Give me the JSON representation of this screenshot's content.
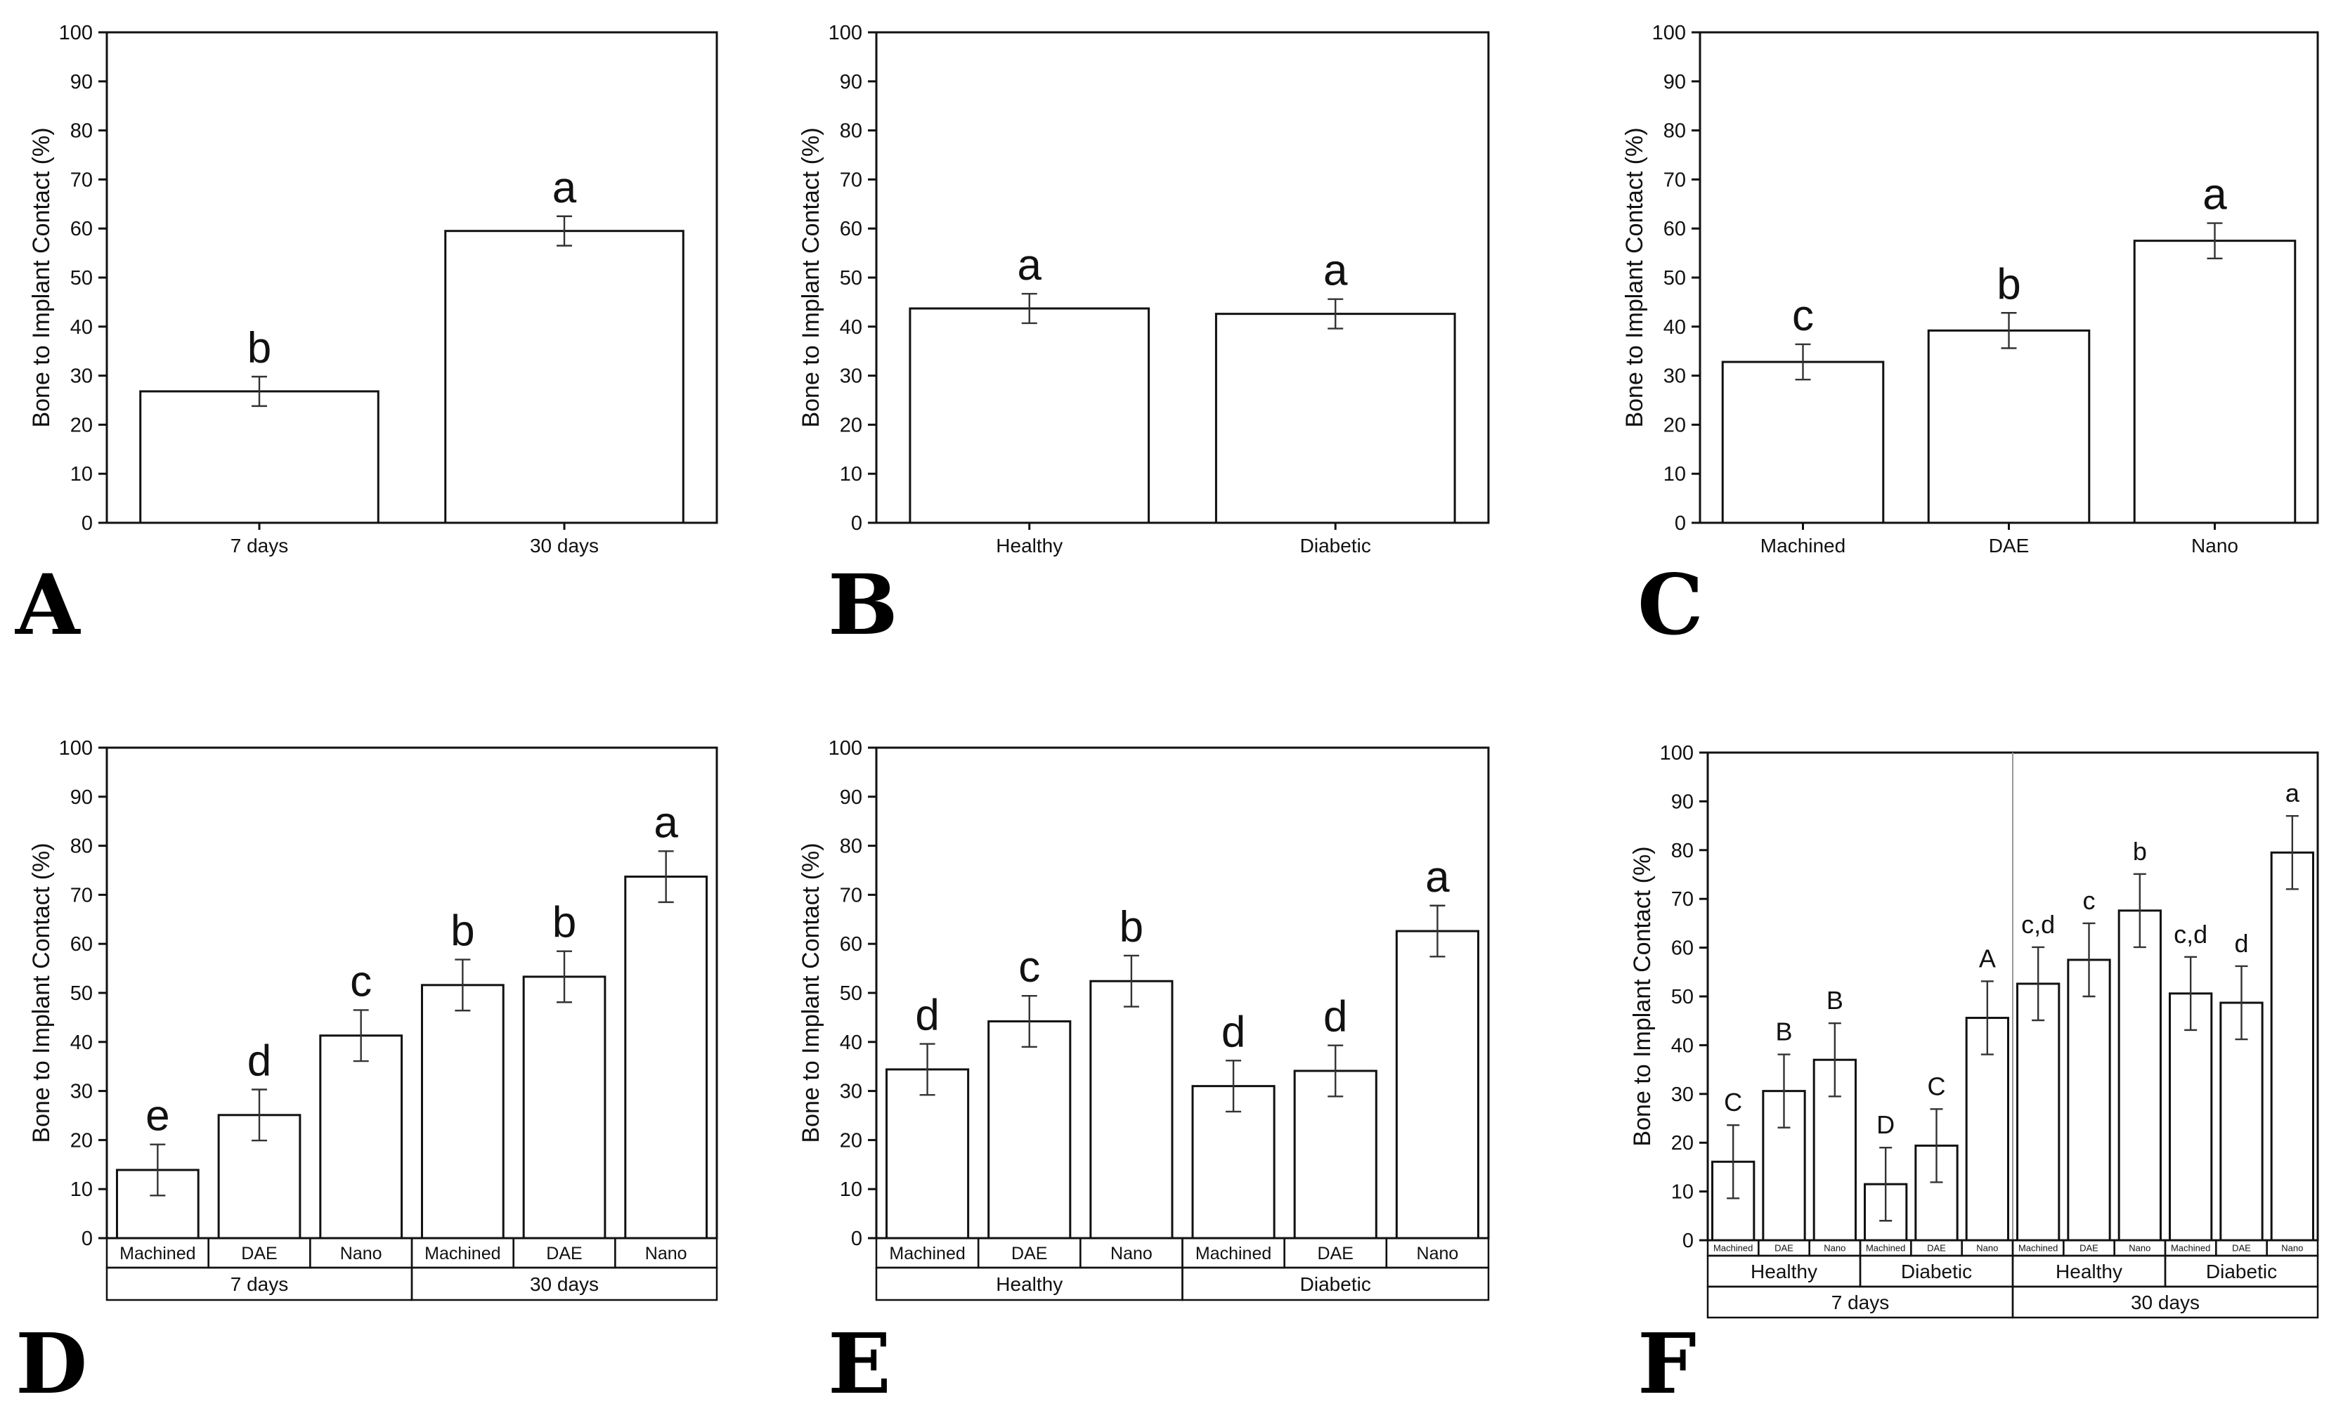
{
  "colors": {
    "bar_fill": "#ffffff",
    "stroke": "#111111"
  },
  "chart_data": [
    {
      "panel": "A",
      "type": "bar",
      "ylabel": "Bone to Implant Contact (%)",
      "ylim": [
        0,
        100
      ],
      "yticks": [
        "0",
        "10",
        "20",
        "30",
        "40",
        "50",
        "60",
        "70",
        "80",
        "90",
        "100"
      ],
      "categories": [
        "7 days",
        "30 days"
      ],
      "values": [
        26.8,
        59.5
      ],
      "errors": [
        3.0,
        3.0
      ],
      "letters": [
        "b",
        "a"
      ],
      "groups": []
    },
    {
      "panel": "B",
      "type": "bar",
      "ylabel": "Bone to Implant Contact (%)",
      "ylim": [
        0,
        100
      ],
      "yticks": [
        "0",
        "10",
        "20",
        "30",
        "40",
        "50",
        "60",
        "70",
        "80",
        "90",
        "100"
      ],
      "categories": [
        "Healthy",
        "Diabetic"
      ],
      "values": [
        43.7,
        42.6
      ],
      "errors": [
        3.0,
        3.0
      ],
      "letters": [
        "a",
        "a"
      ],
      "groups": []
    },
    {
      "panel": "C",
      "type": "bar",
      "ylabel": "Bone to Implant Contact (%)",
      "ylim": [
        0,
        100
      ],
      "yticks": [
        "0",
        "10",
        "20",
        "30",
        "40",
        "50",
        "60",
        "70",
        "80",
        "90",
        "100"
      ],
      "categories": [
        "Machined",
        "DAE",
        "Nano"
      ],
      "values": [
        32.8,
        39.2,
        57.5
      ],
      "errors": [
        3.6,
        3.6,
        3.6
      ],
      "letters": [
        "c",
        "b",
        "a"
      ],
      "groups": []
    },
    {
      "panel": "D",
      "type": "bar",
      "ylabel": "Bone to Implant Contact (%)",
      "ylim": [
        0,
        100
      ],
      "yticks": [
        "0",
        "10",
        "20",
        "30",
        "40",
        "50",
        "60",
        "70",
        "80",
        "90",
        "100"
      ],
      "categories": [
        "Machined",
        "DAE",
        "Nano",
        "Machined",
        "DAE",
        "Nano"
      ],
      "values": [
        13.9,
        25.1,
        41.3,
        51.6,
        53.3,
        73.7
      ],
      "errors": [
        5.2,
        5.2,
        5.2,
        5.2,
        5.2,
        5.2
      ],
      "letters": [
        "e",
        "d",
        "c",
        "b",
        "b",
        "a"
      ],
      "groups": [
        [
          {
            "label": "7 days",
            "span": 3
          },
          {
            "label": "30 days",
            "span": 3
          }
        ]
      ]
    },
    {
      "panel": "E",
      "type": "bar",
      "ylabel": "Bone to Implant Contact (%)",
      "ylim": [
        0,
        100
      ],
      "yticks": [
        "0",
        "10",
        "20",
        "30",
        "40",
        "50",
        "60",
        "70",
        "80",
        "90",
        "100"
      ],
      "categories": [
        "Machined",
        "DAE",
        "Nano",
        "Machined",
        "DAE",
        "Nano"
      ],
      "values": [
        34.4,
        44.2,
        52.4,
        31.0,
        34.1,
        62.6
      ],
      "errors": [
        5.2,
        5.2,
        5.2,
        5.2,
        5.2,
        5.2
      ],
      "letters": [
        "d",
        "c",
        "b",
        "d",
        "d",
        "a"
      ],
      "groups": [
        [
          {
            "label": "Healthy",
            "span": 3
          },
          {
            "label": "Diabetic",
            "span": 3
          }
        ]
      ]
    },
    {
      "panel": "F",
      "type": "bar",
      "ylabel": "Bone to Implant Contact (%)",
      "ylim": [
        0,
        100
      ],
      "yticks": [
        "0",
        "10",
        "20",
        "30",
        "40",
        "50",
        "60",
        "70",
        "80",
        "90",
        "100"
      ],
      "categories": [
        "Machined",
        "DAE",
        "Nano",
        "Machined",
        "DAE",
        "Nano",
        "Machined",
        "DAE",
        "Nano",
        "Machined",
        "DAE",
        "Nano"
      ],
      "values": [
        16.1,
        30.6,
        37.0,
        11.5,
        19.4,
        45.6,
        52.6,
        57.5,
        67.6,
        50.6,
        48.7,
        79.5
      ],
      "errors": [
        7.5,
        7.5,
        7.5,
        7.5,
        7.5,
        7.5,
        7.5,
        7.5,
        7.5,
        7.5,
        7.5,
        7.5
      ],
      "letters": [
        "C",
        "B",
        "B",
        "D",
        "C",
        "A",
        "c,d",
        "c",
        "b",
        "c,d",
        "d",
        "a"
      ],
      "groups": [
        [
          {
            "label": "Healthy",
            "span": 3
          },
          {
            "label": "Diabetic",
            "span": 3
          },
          {
            "label": "Healthy",
            "span": 3
          },
          {
            "label": "Diabetic",
            "span": 3
          }
        ],
        [
          {
            "label": "7 days",
            "span": 6
          },
          {
            "label": "30 days",
            "span": 6
          }
        ]
      ],
      "separator_after": 6
    }
  ]
}
